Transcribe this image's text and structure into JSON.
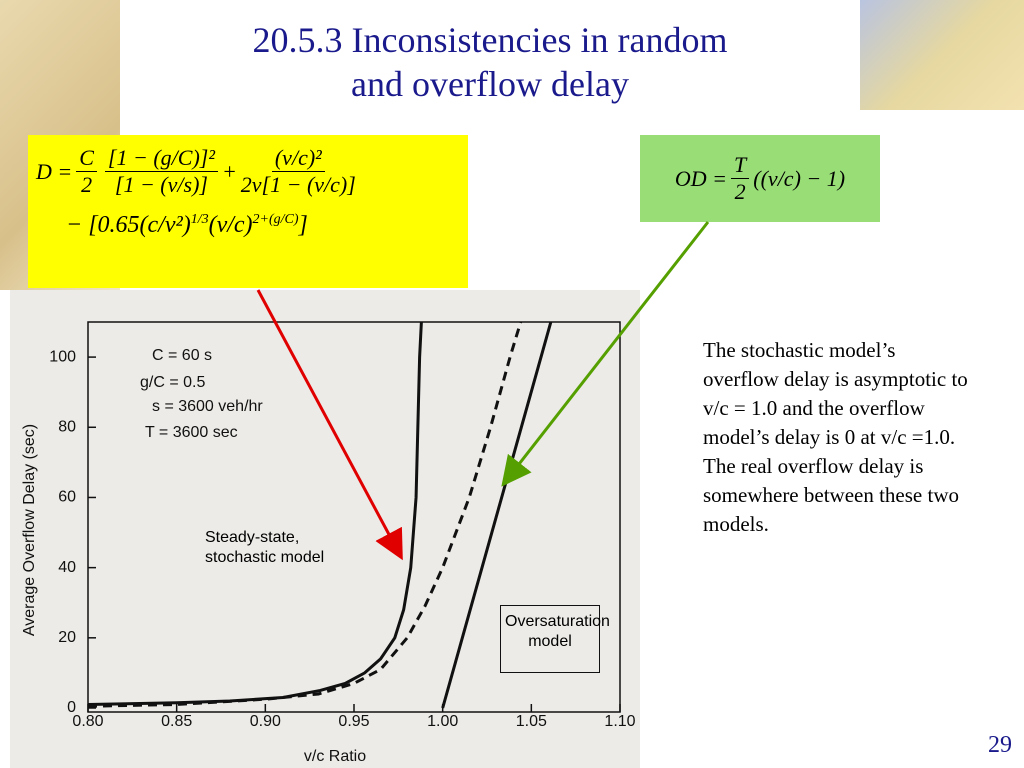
{
  "title": "20.5.3 Inconsistencies in random and overflow delay",
  "delay_formula": {
    "lhs": "D =",
    "f1_num": "C",
    "f1_den": "2",
    "f2_num": "[1 − (g/C)]²",
    "f2_den": "[1 − (v/s)]",
    "plus": "+",
    "f3_num": "(v/c)²",
    "f3_den": "2v[1 − (v/c)]",
    "minus_part": "− [0.65(c/v²)",
    "exp1": "1/3",
    "mid": "(v/c)",
    "exp2": "2+(g/C)",
    "close": "]"
  },
  "od_formula": {
    "lhs": "OD =",
    "num": "T",
    "den": "2",
    "rhs": "((v/c) − 1)"
  },
  "body_text": "The stochastic model’s overflow delay is asymptotic to v/c = 1.0 and the overflow model’s delay is 0 at v/c =1.0. The real overflow delay is somewhere between these two models.",
  "page_number": "29",
  "chart_data": {
    "type": "line",
    "x_label": "v/c Ratio",
    "y_label": "Average Overflow Delay (sec)",
    "xlim": [
      0.8,
      1.1
    ],
    "ylim": [
      0,
      110
    ],
    "xticks": [
      {
        "value": 0.8,
        "label": "0.80"
      },
      0.85,
      {
        "value": 0.9,
        "label": "0.90"
      },
      0.95,
      {
        "value": 1.0,
        "label": "1.00"
      },
      1.05,
      {
        "value": 1.1,
        "label": "1.10"
      }
    ],
    "yticks": [
      0,
      20,
      40,
      60,
      80,
      100
    ],
    "annotations": [
      "C = 60 s",
      "g/C = 0.5",
      "s = 3600 veh/hr",
      "T = 3600 sec"
    ],
    "series": [
      {
        "name": "Steady-state, stochastic model",
        "color": "#111111",
        "style": "solid",
        "x": [
          0.8,
          0.85,
          0.88,
          0.91,
          0.931,
          0.945,
          0.956,
          0.965,
          0.973,
          0.978,
          0.982,
          0.985,
          0.987,
          0.988
        ],
        "values": [
          1,
          1.5,
          2,
          3,
          5,
          7,
          10,
          14,
          20,
          28,
          40,
          60,
          100,
          110
        ]
      },
      {
        "color": "#111111",
        "style": "dashed",
        "x": [
          0.8,
          0.85,
          0.9,
          0.93,
          0.95,
          0.965,
          0.98,
          0.99,
          1.0,
          1.015,
          1.027,
          1.038,
          1.044
        ],
        "values": [
          0.5,
          1,
          2.5,
          4,
          7,
          11,
          20,
          29,
          40,
          60,
          80,
          100,
          110
        ]
      },
      {
        "name": "Oversaturation model",
        "color": "#111111",
        "style": "solid",
        "x": [
          1.0,
          1.061
        ],
        "values": [
          0,
          110
        ]
      }
    ]
  }
}
